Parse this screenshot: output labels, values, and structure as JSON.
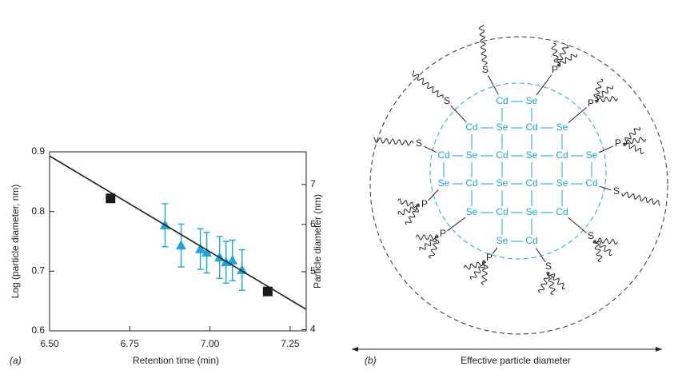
{
  "chart_data": {
    "type": "scatter",
    "x_label": "Retention time (min)",
    "y_label": "Log (particle diameter, nm)",
    "y2_label": "Particle diameter (nm)",
    "panel_label": "(a)",
    "xlim": [
      6.5,
      7.3
    ],
    "xticks": [
      {
        "value": 6.5,
        "label": "6.50"
      },
      6.75,
      {
        "value": 7.0,
        "label": "7.00"
      },
      7.25
    ],
    "ylim": [
      0.6,
      0.9
    ],
    "yticks": [
      0.6,
      0.7,
      0.8,
      0.9
    ],
    "y2lim": [
      3.98,
      7.94
    ],
    "y2ticks": [
      4,
      5,
      6,
      7
    ],
    "y2_log": true,
    "series": [
      {
        "marker": "square",
        "color": "#1a1a1a",
        "x": [
          6.69,
          7.18
        ],
        "values": [
          0.822,
          0.666
        ]
      },
      {
        "marker": "triangle",
        "color": "#1ba5d8",
        "x": [
          6.86,
          6.91,
          6.97,
          6.99,
          7.03,
          7.05,
          7.07,
          7.1
        ],
        "values": [
          0.777,
          0.743,
          0.737,
          0.731,
          0.723,
          0.715,
          0.718,
          0.702
        ],
        "errors": [
          0.036,
          0.036,
          0.034,
          0.034,
          0.035,
          0.035,
          0.034,
          0.034
        ]
      },
      {
        "marker": "line",
        "color": "#1a1a1a",
        "x": [
          6.5,
          7.3
        ],
        "values": [
          0.893,
          0.636
        ]
      }
    ]
  },
  "diagram": {
    "panel_label": "(b)",
    "caption": "Effective particle diameter",
    "core": [
      [
        "Cd",
        "Se"
      ],
      [
        "Cd",
        "Se",
        "Cd",
        "Se"
      ],
      [
        "Cd",
        "Se",
        "Cd",
        "Se",
        "Cd",
        "Se"
      ],
      [
        "Se",
        "Cd",
        "Se",
        "Cd",
        "Se",
        "Cd"
      ],
      [
        "Se",
        "Cd",
        "Se",
        "Cd"
      ],
      [
        "Se",
        "Cd"
      ]
    ],
    "ligands": [
      "S",
      "P",
      "S",
      "P",
      "S",
      "P",
      "S",
      "P",
      "P",
      "S",
      "P",
      "S"
    ]
  }
}
